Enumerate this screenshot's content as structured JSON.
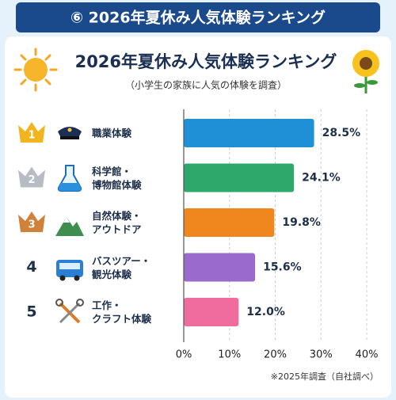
{
  "banner_title": "⑥ 2026年夏休み人気体験ランキング",
  "chart_data": {
    "type": "bar",
    "orientation": "horizontal",
    "title": "2026年夏休み人気体験ランキング",
    "subtitle": "（小学生の家族に人気の体験を調査）",
    "ranks": [
      "1",
      "2",
      "3",
      "4",
      "5"
    ],
    "categories": [
      "職業体験",
      "科学館・\n博物館体験",
      "自然体験・\nアウトドア",
      "バスツアー・\n観光体験",
      "工作・\nクラフト体験"
    ],
    "values": [
      28.5,
      24.1,
      19.8,
      15.6,
      12.0
    ],
    "value_labels": [
      "28.5%",
      "24.1%",
      "19.8%",
      "15.6%",
      "12.0%"
    ],
    "colors": [
      "#1f8fd6",
      "#2fa86c",
      "#f0861e",
      "#9a6bcc",
      "#f06b9e"
    ],
    "xlim": [
      0,
      40
    ],
    "xticks": [
      {
        "value": 0,
        "label": "0%"
      },
      {
        "value": 10,
        "label": "10%"
      },
      {
        "value": 20,
        "label": "20%"
      },
      {
        "value": 30,
        "label": "30%"
      },
      {
        "value": 40,
        "label": "40%"
      }
    ],
    "grid": true,
    "note": "※2025年調査（自社調べ）"
  }
}
